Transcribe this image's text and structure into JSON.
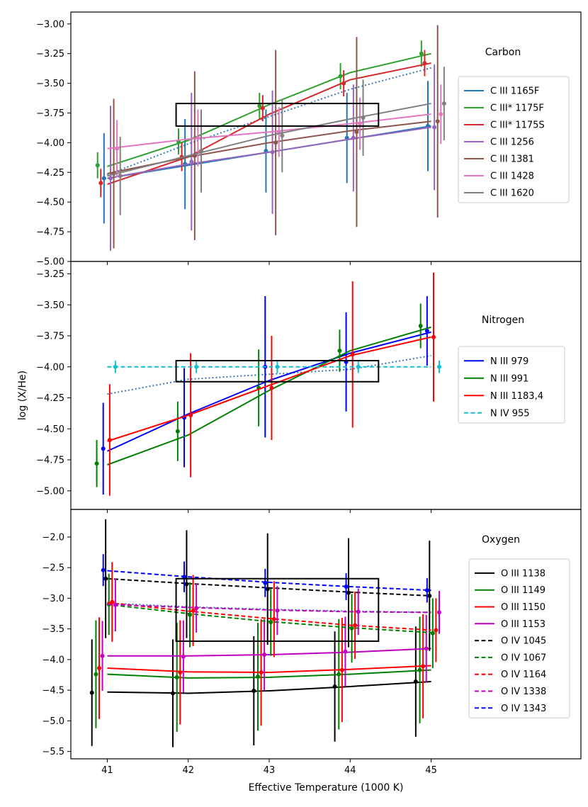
{
  "figure": {
    "xlabel": "Effective Temperature (1000 K)",
    "ylabel": "log (X/He)"
  },
  "chart_data": [
    {
      "type": "scatter",
      "panel": "Carbon",
      "title": "Carbon",
      "xlabel": "Effective Temperature (1000 K)",
      "ylabel": "log (X/He)",
      "xlim": [
        40.55,
        46.85
      ],
      "ylim": [
        -5.0,
        -2.9
      ],
      "x_ticks": [
        41,
        42,
        43,
        44,
        45
      ],
      "y_ticks": [
        -5.0,
        -4.75,
        -4.5,
        -4.25,
        -4.0,
        -3.75,
        -3.5,
        -3.25,
        -3.0
      ],
      "y_tick_labels": [
        "−5.00",
        "−4.75",
        "−4.50",
        "−4.25",
        "−4.00",
        "−3.75",
        "−3.50",
        "−3.25",
        "−3.00"
      ],
      "legend_position": "right",
      "box": {
        "x": [
          41.85,
          44.35
        ],
        "y": [
          -3.86,
          -3.67
        ]
      },
      "trend": {
        "x": [
          41,
          42,
          43,
          44,
          45
        ],
        "y": [
          -4.27,
          -4.01,
          -3.78,
          -3.55,
          -3.37
        ],
        "color": "#3a78b5",
        "dash": "dotted"
      },
      "series": [
        {
          "name": "C III 1165F",
          "color": "#1f77b4",
          "dash": "solid",
          "x": [
            40.96,
            41.96,
            42.96,
            43.96,
            44.96
          ],
          "y": [
            -4.3,
            -4.18,
            -4.07,
            -3.96,
            -3.86
          ],
          "err": [
            0.38,
            0.38,
            0.35,
            0.38,
            0.38
          ],
          "fit": [
            -4.3,
            -4.19,
            -4.08,
            -3.97,
            -3.86
          ]
        },
        {
          "name": "C III* 1175F",
          "color": "#2ca02c",
          "dash": "solid",
          "x": [
            40.88,
            41.88,
            42.88,
            43.88,
            44.88
          ],
          "y": [
            -4.19,
            -3.99,
            -3.69,
            -3.44,
            -3.25
          ],
          "err": [
            0.11,
            0.11,
            0.11,
            0.11,
            0.11
          ],
          "fit": [
            -4.2,
            -3.98,
            -3.68,
            -3.41,
            -3.25
          ]
        },
        {
          "name": "C III* 1175S",
          "color": "#d62728",
          "dash": "solid",
          "x": [
            40.92,
            41.92,
            42.92,
            43.92,
            44.92
          ],
          "y": [
            -4.34,
            -4.12,
            -3.71,
            -3.5,
            -3.33
          ],
          "err": [
            0.12,
            0.12,
            0.11,
            0.11,
            0.11
          ],
          "fit": [
            -4.35,
            -4.12,
            -3.76,
            -3.47,
            -3.33
          ]
        },
        {
          "name": "C III 1256",
          "color": "#9467bd",
          "dash": "solid",
          "x": [
            41.04,
            42.04,
            43.04,
            44.04,
            45.04
          ],
          "y": [
            -4.3,
            -4.16,
            -4.08,
            -3.96,
            -3.87
          ],
          "err": [
            0.61,
            0.58,
            0.52,
            0.45,
            0.53
          ],
          "fit": [
            -4.3,
            -4.18,
            -4.08,
            -3.97,
            -3.87
          ]
        },
        {
          "name": "C III 1381",
          "color": "#8c564b",
          "dash": "solid",
          "x": [
            41.08,
            42.08,
            43.08,
            44.08,
            45.08
          ],
          "y": [
            -4.26,
            -4.11,
            -4.0,
            -3.91,
            -3.82
          ],
          "err": [
            0.63,
            0.71,
            0.78,
            0.8,
            0.81
          ],
          "fit": [
            -4.26,
            -4.12,
            -4.0,
            -3.9,
            -3.82
          ]
        },
        {
          "name": "C III 1428",
          "color": "#e377c2",
          "dash": "solid",
          "x": [
            41.12,
            42.12,
            43.12,
            44.12,
            45.12
          ],
          "y": [
            -4.05,
            -3.96,
            -3.91,
            -3.84,
            -3.76
          ],
          "err": [
            0.24,
            0.24,
            0.21,
            0.22,
            0.25
          ],
          "fit": [
            -4.05,
            -3.97,
            -3.91,
            -3.84,
            -3.76
          ]
        },
        {
          "name": "C III 1620",
          "color": "#7f7f7f",
          "dash": "solid",
          "x": [
            41.16,
            42.16,
            43.16,
            44.16,
            45.16
          ],
          "y": [
            -4.28,
            -4.07,
            -3.94,
            -3.79,
            -3.67
          ],
          "err": [
            0.33,
            0.35,
            0.31,
            0.32,
            0.31
          ],
          "fit": [
            -4.28,
            -4.11,
            -3.94,
            -3.8,
            -3.67
          ]
        }
      ]
    },
    {
      "type": "scatter",
      "panel": "Nitrogen",
      "title": "Nitrogen",
      "xlabel": "Effective Temperature (1000 K)",
      "ylabel": "log (X/He)",
      "xlim": [
        40.55,
        46.85
      ],
      "ylim": [
        -5.15,
        -3.15
      ],
      "x_ticks": [
        41,
        42,
        43,
        44,
        45
      ],
      "y_ticks": [
        -5.0,
        -4.75,
        -4.5,
        -4.25,
        -4.0,
        -3.75,
        -3.5,
        -3.25
      ],
      "y_tick_labels": [
        "−5.00",
        "−4.75",
        "−4.50",
        "−4.25",
        "−4.00",
        "−3.75",
        "−3.50",
        "−3.25"
      ],
      "legend_position": "right",
      "box": {
        "x": [
          41.85,
          44.35
        ],
        "y": [
          -4.12,
          -3.95
        ]
      },
      "trend": {
        "x": [
          41,
          42,
          43,
          44,
          45
        ],
        "y": [
          -4.22,
          -4.1,
          -4.06,
          -4.02,
          -3.91
        ],
        "color": "#3a78b5",
        "dash": "dotted"
      },
      "series": [
        {
          "name": "N III 979",
          "color": "#0000ff",
          "dash": "solid",
          "x": [
            40.95,
            41.95,
            42.95,
            43.95,
            44.95
          ],
          "y": [
            -4.66,
            -4.41,
            -4.0,
            -3.96,
            -3.71
          ],
          "err": [
            0.37,
            0.4,
            0.57,
            0.4,
            0.28
          ],
          "fit": [
            -4.68,
            -4.38,
            -4.11,
            -3.89,
            -3.72
          ]
        },
        {
          "name": "N III 991",
          "color": "#008000",
          "dash": "solid",
          "x": [
            40.87,
            41.87,
            42.87,
            43.87,
            44.87
          ],
          "y": [
            -4.78,
            -4.52,
            -4.17,
            -3.87,
            -3.67
          ],
          "err": [
            0.19,
            0.24,
            0.31,
            0.17,
            0.18
          ],
          "fit": [
            -4.79,
            -4.55,
            -4.19,
            -3.87,
            -3.68
          ]
        },
        {
          "name": "N III 1183,4",
          "color": "#ff0000",
          "dash": "solid",
          "x": [
            41.03,
            42.03,
            43.03,
            44.03,
            45.03
          ],
          "y": [
            -4.59,
            -4.39,
            -4.17,
            -3.9,
            -3.76
          ],
          "err": [
            0.45,
            0.5,
            0.42,
            0.59,
            0.52
          ],
          "fit": [
            -4.6,
            -4.39,
            -4.15,
            -3.91,
            -3.76
          ]
        },
        {
          "name": "N IV 955",
          "color": "#17becf",
          "dash": "dashed",
          "x": [
            41.1,
            42.1,
            43.1,
            44.1,
            45.1
          ],
          "y": [
            -4.0,
            -4.0,
            -4.0,
            -4.0,
            -4.0
          ],
          "err": [
            0.05,
            0.05,
            0.05,
            0.05,
            0.05
          ],
          "fit": [
            -4.0,
            -4.0,
            -4.0,
            -4.0,
            -4.0
          ]
        }
      ]
    },
    {
      "type": "scatter",
      "panel": "Oxygen",
      "title": "Oxygen",
      "xlabel": "Effective Temperature (1000 K)",
      "ylabel": "log (X/He)",
      "xlim": [
        40.55,
        46.85
      ],
      "ylim": [
        -5.62,
        -1.55
      ],
      "x_ticks": [
        41,
        42,
        43,
        44,
        45
      ],
      "x_tick_labels": [
        "41",
        "42",
        "43",
        "44",
        "45"
      ],
      "y_ticks": [
        -5.5,
        -5.0,
        -4.5,
        -4.0,
        -3.5,
        -3.0,
        -2.5,
        -2.0
      ],
      "y_tick_labels": [
        "−5.5",
        "−5.0",
        "−4.5",
        "−4.0",
        "−3.5",
        "−3.0",
        "−2.5",
        "−2.0"
      ],
      "legend_position": "right",
      "box": {
        "x": [
          41.85,
          44.35
        ],
        "y": [
          -3.7,
          -2.68
        ]
      },
      "trend": {
        "x": [
          41,
          42,
          43,
          44,
          45
        ],
        "y": [
          -3.08,
          -3.14,
          -3.18,
          -3.21,
          -3.23
        ],
        "color": "#3a78b5",
        "dash": "dotted"
      },
      "series": [
        {
          "name": "O III 1138",
          "color": "#000000",
          "dash": "solid",
          "x": [
            40.81,
            41.81,
            42.81,
            43.81,
            44.81
          ],
          "y": [
            -4.54,
            -4.55,
            -4.51,
            -4.44,
            -4.36
          ],
          "err": [
            0.87,
            0.88,
            0.89,
            0.9,
            0.9
          ],
          "fit": [
            -4.53,
            -4.55,
            -4.51,
            -4.44,
            -4.36
          ]
        },
        {
          "name": "O III 1149",
          "color": "#008000",
          "dash": "solid",
          "x": [
            40.86,
            41.86,
            42.86,
            43.86,
            44.86
          ],
          "y": [
            -4.24,
            -4.29,
            -4.28,
            -4.24,
            -4.17
          ],
          "err": [
            0.88,
            0.89,
            0.88,
            0.9,
            0.87
          ],
          "fit": [
            -4.24,
            -4.3,
            -4.29,
            -4.24,
            -4.17
          ]
        },
        {
          "name": "O III 1150",
          "color": "#ff0000",
          "dash": "solid",
          "x": [
            40.9,
            41.9,
            42.9,
            43.9,
            44.9
          ],
          "y": [
            -4.14,
            -4.21,
            -4.21,
            -4.17,
            -4.11
          ],
          "err": [
            0.83,
            0.85,
            0.87,
            0.85,
            0.85
          ],
          "fit": [
            -4.14,
            -4.2,
            -4.21,
            -4.16,
            -4.1
          ]
        },
        {
          "name": "O III 1153",
          "color": "#bf00bf",
          "dash": "solid",
          "x": [
            40.94,
            41.94,
            42.94,
            43.94,
            44.94
          ],
          "y": [
            -3.94,
            -3.95,
            -3.92,
            -3.87,
            -3.82
          ],
          "err": [
            0.57,
            0.59,
            0.58,
            0.57,
            0.55
          ],
          "fit": [
            -3.94,
            -3.94,
            -3.92,
            -3.88,
            -3.82
          ]
        },
        {
          "name": "O IV 1045",
          "color": "#000000",
          "dash": "dashed",
          "x": [
            40.98,
            41.98,
            42.98,
            43.98,
            44.98
          ],
          "y": [
            -2.68,
            -2.77,
            -2.85,
            -2.91,
            -2.96
          ],
          "err": [
            0.97,
            0.88,
            0.91,
            0.89,
            0.9
          ],
          "fit": [
            -2.68,
            -2.76,
            -2.83,
            -2.9,
            -2.96
          ]
        },
        {
          "name": "O IV 1067",
          "color": "#008000",
          "dash": "dashed",
          "x": [
            41.02,
            42.02,
            43.02,
            44.02,
            45.02
          ],
          "y": [
            -3.1,
            -3.27,
            -3.39,
            -3.49,
            -3.57
          ],
          "err": [
            0.5,
            0.53,
            0.55,
            0.56,
            0.57
          ],
          "fit": [
            -3.1,
            -3.25,
            -3.38,
            -3.48,
            -3.56
          ]
        },
        {
          "name": "O IV 1164",
          "color": "#ff0000",
          "dash": "dashed",
          "x": [
            41.06,
            42.06,
            43.06,
            44.06,
            45.06
          ],
          "y": [
            -3.06,
            -3.2,
            -3.34,
            -3.44,
            -3.52
          ],
          "err": [
            0.65,
            0.58,
            0.62,
            0.55,
            0.52
          ],
          "fit": [
            -3.07,
            -3.21,
            -3.33,
            -3.44,
            -3.52
          ]
        },
        {
          "name": "O IV 1338",
          "color": "#bf00bf",
          "dash": "dashed",
          "x": [
            41.1,
            42.1,
            43.1,
            44.1,
            45.1
          ],
          "y": [
            -3.11,
            -3.16,
            -3.2,
            -3.22,
            -3.23
          ],
          "err": [
            0.43,
            0.4,
            0.4,
            0.38,
            0.35
          ],
          "fit": [
            -3.1,
            -3.15,
            -3.19,
            -3.22,
            -3.23
          ]
        },
        {
          "name": "O IV 1343",
          "color": "#0000ff",
          "dash": "dashed",
          "x": [
            40.95,
            41.95,
            42.95,
            43.95,
            44.95
          ],
          "y": [
            -2.54,
            -2.65,
            -2.75,
            -2.81,
            -2.87
          ],
          "err": [
            0.26,
            0.25,
            0.23,
            0.22,
            0.2
          ],
          "fit": [
            -2.55,
            -2.65,
            -2.74,
            -2.81,
            -2.87
          ]
        }
      ]
    }
  ]
}
